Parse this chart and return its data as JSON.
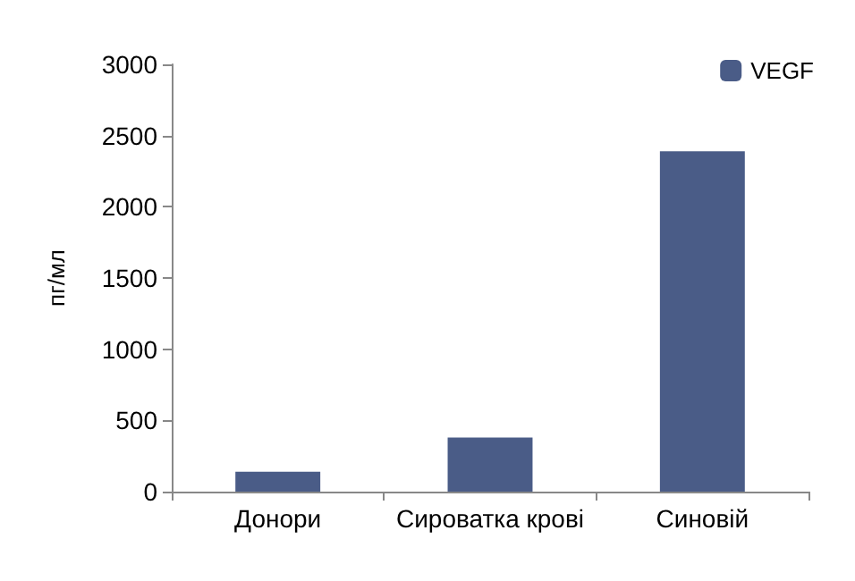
{
  "chart_data": {
    "type": "bar",
    "ylabel": "пг/мл",
    "categories": [
      "Донори",
      "Сироватка крові",
      "Синовій"
    ],
    "series": [
      {
        "name": "VEGF",
        "color": "#4a5c87",
        "values": [
          140,
          380,
          2390
        ]
      }
    ],
    "ylim": [
      0,
      3000
    ],
    "yticks": [
      0,
      500,
      1000,
      1500,
      2000,
      2500,
      3000
    ],
    "grid": false,
    "legend": "top right"
  }
}
